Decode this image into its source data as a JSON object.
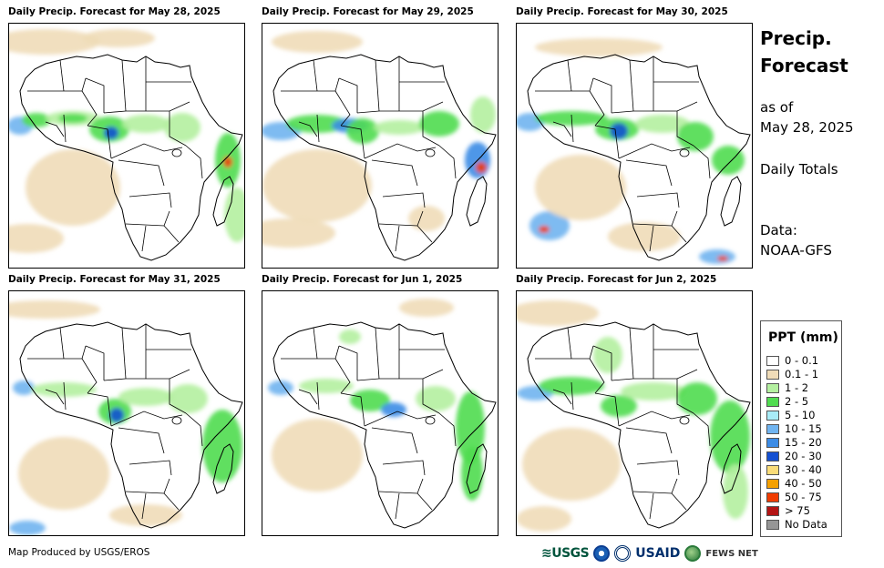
{
  "panels": [
    {
      "title": "Daily Precip. Forecast for May 28, 2025"
    },
    {
      "title": "Daily Precip. Forecast for May 29, 2025"
    },
    {
      "title": "Daily Precip. Forecast for May 30, 2025"
    },
    {
      "title": "Daily Precip. Forecast for May 31, 2025"
    },
    {
      "title": "Daily Precip. Forecast for Jun 1, 2025"
    },
    {
      "title": "Daily Precip. Forecast for Jun 2, 2025"
    }
  ],
  "sidebar": {
    "title_line1": "Precip.",
    "title_line2": "Forecast",
    "as_of_label": "as of",
    "as_of_date": "May 28, 2025",
    "totals": "Daily Totals",
    "data_label": "Data:",
    "data_source": "NOAA-GFS"
  },
  "legend": {
    "title": "PPT (mm)",
    "items": [
      {
        "label": "0 - 0.1",
        "color": "#ffffff"
      },
      {
        "label": "0.1 - 1",
        "color": "#f0dcb8"
      },
      {
        "label": "1 - 2",
        "color": "#b4f0a0"
      },
      {
        "label": "2 - 5",
        "color": "#50dc50"
      },
      {
        "label": "5 - 10",
        "color": "#a8ecf8"
      },
      {
        "label": "10 - 15",
        "color": "#70b4f0"
      },
      {
        "label": "15 - 20",
        "color": "#3c8ce6"
      },
      {
        "label": "20 - 30",
        "color": "#1450d2"
      },
      {
        "label": "30 - 40",
        "color": "#fadc78"
      },
      {
        "label": "40 - 50",
        "color": "#f5a000"
      },
      {
        "label": "50 - 75",
        "color": "#f03c00"
      },
      {
        "label": "> 75",
        "color": "#b41414"
      },
      {
        "label": "No Data",
        "color": "#969696"
      }
    ]
  },
  "footer": {
    "credit": "Map Produced by USGS/EROS",
    "logo_usgs": "≋USGS",
    "logo_usaid": "USAID",
    "logo_fews": "FEWS NET"
  }
}
